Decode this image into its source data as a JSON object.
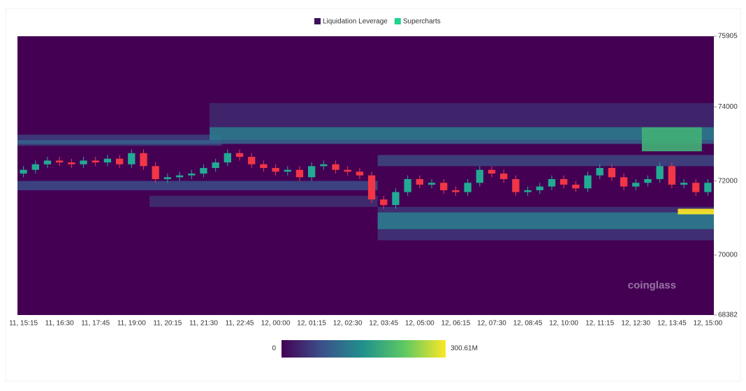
{
  "chart_data": {
    "type": "candlestick-heatmap",
    "legend": [
      {
        "name": "Liquidation Leverage",
        "color": "#3d0f5c"
      },
      {
        "name": "Supercharts",
        "color": "#1fd48c"
      }
    ],
    "categories": [
      "11, 15:15",
      null,
      null,
      "11, 16:30",
      null,
      null,
      "11, 17:45",
      null,
      null,
      "11, 19:00",
      null,
      null,
      "11, 20:15",
      null,
      null,
      "11, 21:30",
      null,
      null,
      "11, 22:45",
      null,
      null,
      "12, 00:00",
      null,
      null,
      "12, 01:15",
      null,
      null,
      "12, 02:30",
      null,
      null,
      "12, 03:45",
      null,
      null,
      "12, 05:00",
      null,
      null,
      "12, 06:15",
      null,
      null,
      "12, 07:30",
      null,
      null,
      "12, 08:45",
      null,
      null,
      "12, 10:00",
      null,
      null,
      "12, 11:15",
      null,
      null,
      "12, 12:30",
      null,
      null,
      "12, 13:45",
      null,
      null,
      "12, 15:00"
    ],
    "open": [
      72200,
      72300,
      72450,
      72550,
      72500,
      72450,
      72550,
      72500,
      72600,
      72450,
      72750,
      72400,
      72050,
      72100,
      72150,
      72200,
      72350,
      72500,
      72750,
      72650,
      72450,
      72350,
      72250,
      72300,
      72100,
      72400,
      72450,
      72300,
      72250,
      72150,
      71500,
      71350,
      71700,
      72050,
      71900,
      71950,
      71750,
      71700,
      71950,
      72300,
      72200,
      72050,
      71700,
      71750,
      71850,
      72050,
      71900,
      71800,
      72150,
      72350,
      72100,
      71850,
      71950,
      72050,
      72400,
      71900,
      71950,
      71700
    ],
    "high": [
      72400,
      72550,
      72650,
      72650,
      72600,
      72650,
      72650,
      72700,
      72700,
      72850,
      72850,
      72500,
      72200,
      72250,
      72300,
      72450,
      72600,
      72850,
      72850,
      72750,
      72550,
      72450,
      72400,
      72400,
      72500,
      72550,
      72550,
      72400,
      72350,
      72250,
      71600,
      71800,
      72150,
      72150,
      72050,
      72050,
      71850,
      72050,
      72400,
      72400,
      72300,
      72150,
      71850,
      71950,
      72150,
      72150,
      72000,
      72250,
      72450,
      72450,
      72200,
      72050,
      72150,
      72500,
      72500,
      72050,
      72050,
      72050
    ],
    "low": [
      72100,
      72200,
      72350,
      72400,
      72350,
      72350,
      72400,
      72400,
      72350,
      72350,
      72300,
      71950,
      71950,
      72000,
      72050,
      72100,
      72250,
      72400,
      72550,
      72350,
      72250,
      72150,
      72150,
      72000,
      72000,
      72300,
      72200,
      72150,
      72050,
      71400,
      71250,
      71250,
      71600,
      71800,
      71800,
      71650,
      71600,
      71600,
      71850,
      72100,
      71950,
      71600,
      71600,
      71650,
      71750,
      71800,
      71700,
      71700,
      72050,
      72000,
      71750,
      71750,
      71850,
      71950,
      71800,
      71800,
      71600,
      71600
    ],
    "close": [
      72300,
      72450,
      72550,
      72500,
      72450,
      72550,
      72500,
      72600,
      72450,
      72750,
      72400,
      72050,
      72100,
      72150,
      72200,
      72350,
      72500,
      72750,
      72650,
      72450,
      72350,
      72250,
      72300,
      72100,
      72400,
      72450,
      72300,
      72250,
      72150,
      71500,
      71350,
      71700,
      72050,
      71900,
      71950,
      71750,
      71700,
      71950,
      72300,
      72200,
      72050,
      71700,
      71750,
      71850,
      72050,
      71900,
      71800,
      72150,
      72350,
      72100,
      71850,
      71950,
      72050,
      72400,
      71900,
      71950,
      71700,
      71950
    ],
    "up_color": "#22ab94",
    "down_color": "#f23645",
    "zones": [
      {
        "start": 16,
        "end": 57,
        "low": 73450,
        "high": 74100,
        "value": 35
      },
      {
        "start": 0,
        "end": 16,
        "low": 72950,
        "high": 73250,
        "value": 55
      },
      {
        "start": 16,
        "end": 57,
        "low": 73100,
        "high": 73450,
        "value": 120
      },
      {
        "start": 0,
        "end": 57,
        "low": 73000,
        "high": 73100,
        "value": 90
      },
      {
        "start": 30,
        "end": 57,
        "low": 72400,
        "high": 72700,
        "value": 60
      },
      {
        "start": 0,
        "end": 29,
        "low": 71750,
        "high": 72000,
        "value": 65
      },
      {
        "start": 11,
        "end": 29,
        "low": 71300,
        "high": 71600,
        "value": 40
      },
      {
        "start": 30,
        "end": 57,
        "low": 70400,
        "high": 71300,
        "value": 45
      },
      {
        "start": 30,
        "end": 57,
        "low": 70700,
        "high": 71150,
        "value": 120
      },
      {
        "start": 52,
        "end": 56,
        "low": 72800,
        "high": 73450,
        "value": 190
      },
      {
        "start": 55,
        "end": 57,
        "low": 71100,
        "high": 71250,
        "value": 300
      }
    ],
    "colorbar": {
      "min": 0,
      "max": {
        "value": 300.61,
        "label": "300.61M"
      }
    },
    "ylim": [
      68382,
      75905
    ],
    "yticks": [
      68382,
      70000,
      72000,
      74000,
      75905
    ],
    "watermark": "coinglass"
  }
}
